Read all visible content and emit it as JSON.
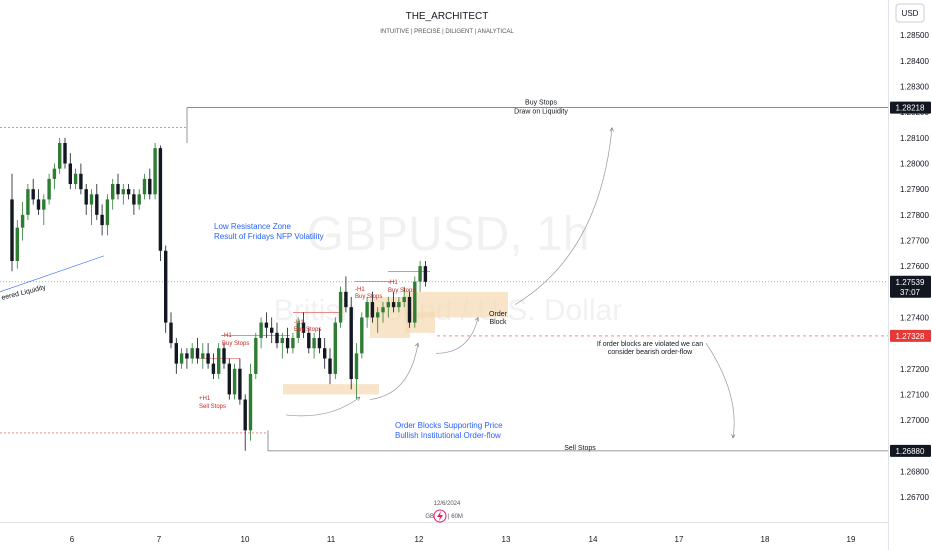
{
  "header": {
    "brand": "THE_ARCHITECT",
    "tagline": "INTUITIVE | PRECISE | DILIGENT | ANALYTICAL",
    "currency": "USD"
  },
  "watermark": {
    "symbol": "GBPUSD, 1h",
    "description": "British Pound / U.S. Dollar"
  },
  "footer": {
    "date": "12/6/2024",
    "label_left": "GB",
    "label_right": "| 60M"
  },
  "colors": {
    "up": "#2e7d32",
    "down": "#131722",
    "zone": "#f5d9b0",
    "red_line": "#e04848",
    "blue_text": "#2962ff",
    "red_text": "#c62828",
    "price_badge": "#131722",
    "current_badge": "#e53935"
  },
  "chart_data": {
    "type": "candlestick",
    "y_range": [
      1.2663,
      1.2861
    ],
    "y_ticks": [
      {
        "value": 1.285,
        "label": "1.28500"
      },
      {
        "value": 1.284,
        "label": "1.28400"
      },
      {
        "value": 1.283,
        "label": "1.28300"
      },
      {
        "value": 1.282,
        "label": "1.28200"
      },
      {
        "value": 1.281,
        "label": "1.28100"
      },
      {
        "value": 1.28,
        "label": "1.28000"
      },
      {
        "value": 1.279,
        "label": "1.27900"
      },
      {
        "value": 1.278,
        "label": "1.27800"
      },
      {
        "value": 1.277,
        "label": "1.27700"
      },
      {
        "value": 1.276,
        "label": "1.27600"
      },
      {
        "value": 1.274,
        "label": "1.27400"
      },
      {
        "value": 1.272,
        "label": "1.27200"
      },
      {
        "value": 1.271,
        "label": "1.27100"
      },
      {
        "value": 1.27,
        "label": "1.27000"
      },
      {
        "value": 1.268,
        "label": "1.26800"
      },
      {
        "value": 1.267,
        "label": "1.26700"
      }
    ],
    "x_ticks": [
      "6",
      "7",
      "10",
      "11",
      "12",
      "13",
      "14",
      "17",
      "18",
      "19"
    ],
    "price_badges": [
      {
        "value": 1.28218,
        "label": "1.28218",
        "kind": "level"
      },
      {
        "value": 1.27539,
        "label": "1.27539",
        "kind": "last",
        "countdown": "37:07"
      },
      {
        "value": 1.27328,
        "label": "1.27328",
        "kind": "current"
      },
      {
        "value": 1.2688,
        "label": "1.26880",
        "kind": "level"
      }
    ],
    "levels": [
      {
        "value": 1.28218,
        "label": "Buy Stops"
      },
      {
        "value": 1.2688,
        "label": "Sell Stops"
      }
    ],
    "annotations": {
      "buy_stops_target": [
        "Buy Stops",
        "Draw on Liquidity"
      ],
      "sell_stops": "Sell Stops",
      "low_resistance": [
        "Low Resistance Zone",
        "Result of Fridays NFP Volatility"
      ],
      "engineered": "eered Liquidity",
      "order_block": [
        "Order",
        "Block"
      ],
      "violation": [
        "If order blocks are violated we can",
        "consider bearish order-flow"
      ],
      "supporting": [
        "Order Blocks Supporting Price",
        "Bullish Institutional Order-flow"
      ],
      "h1_buy_1": [
        "-H1",
        "Buy Stops"
      ],
      "h1_sell": [
        "+H1",
        "Sell Stops"
      ],
      "h1_buy_2": [
        "-H1",
        "Buy Stops"
      ],
      "h1_buy_3": [
        "-H1",
        "Buy Stops"
      ],
      "h1_buy_4": [
        "-H1",
        "Buy Stops"
      ]
    },
    "candles": [
      [
        1.2786,
        1.2796,
        1.2758,
        1.2762
      ],
      [
        1.2762,
        1.2778,
        1.2759,
        1.2775
      ],
      [
        1.2775,
        1.2785,
        1.277,
        1.278
      ],
      [
        1.278,
        1.2792,
        1.2778,
        1.279
      ],
      [
        1.279,
        1.2794,
        1.2784,
        1.2786
      ],
      [
        1.2786,
        1.279,
        1.278,
        1.2782
      ],
      [
        1.2782,
        1.2788,
        1.2776,
        1.2786
      ],
      [
        1.2786,
        1.2796,
        1.2784,
        1.2794
      ],
      [
        1.2794,
        1.28,
        1.279,
        1.2798
      ],
      [
        1.2798,
        1.281,
        1.2796,
        1.2808
      ],
      [
        1.2808,
        1.281,
        1.2798,
        1.28
      ],
      [
        1.28,
        1.2804,
        1.279,
        1.2792
      ],
      [
        1.2792,
        1.2798,
        1.279,
        1.2796
      ],
      [
        1.2796,
        1.28,
        1.2788,
        1.279
      ],
      [
        1.279,
        1.2792,
        1.278,
        1.2784
      ],
      [
        1.2784,
        1.279,
        1.2776,
        1.2788
      ],
      [
        1.2788,
        1.2792,
        1.2778,
        1.278
      ],
      [
        1.278,
        1.2784,
        1.2772,
        1.2776
      ],
      [
        1.2776,
        1.2788,
        1.2772,
        1.2786
      ],
      [
        1.2786,
        1.2794,
        1.2782,
        1.2792
      ],
      [
        1.2792,
        1.2796,
        1.2786,
        1.2788
      ],
      [
        1.2788,
        1.2792,
        1.2784,
        1.279
      ],
      [
        1.279,
        1.2792,
        1.2786,
        1.2788
      ],
      [
        1.2788,
        1.279,
        1.278,
        1.2784
      ],
      [
        1.2784,
        1.279,
        1.2782,
        1.2788
      ],
      [
        1.2788,
        1.2796,
        1.2786,
        1.2794
      ],
      [
        1.2794,
        1.2798,
        1.2786,
        1.2788
      ],
      [
        1.2788,
        1.2808,
        1.2786,
        1.2806
      ],
      [
        1.2806,
        1.2807,
        1.2762,
        1.2766
      ],
      [
        1.2766,
        1.2768,
        1.2734,
        1.2738
      ],
      [
        1.2738,
        1.2742,
        1.2728,
        1.273
      ],
      [
        1.273,
        1.2732,
        1.2718,
        1.2722
      ],
      [
        1.2722,
        1.2728,
        1.272,
        1.2726
      ],
      [
        1.2726,
        1.2728,
        1.272,
        1.2724
      ],
      [
        1.2724,
        1.273,
        1.2722,
        1.2728
      ],
      [
        1.2728,
        1.2732,
        1.2722,
        1.2724
      ],
      [
        1.2724,
        1.273,
        1.272,
        1.2726
      ],
      [
        1.2726,
        1.273,
        1.272,
        1.2722
      ],
      [
        1.2722,
        1.2726,
        1.2716,
        1.2718
      ],
      [
        1.2718,
        1.273,
        1.2716,
        1.2728
      ],
      [
        1.2728,
        1.273,
        1.272,
        1.2722
      ],
      [
        1.2722,
        1.2724,
        1.2708,
        1.271
      ],
      [
        1.271,
        1.2722,
        1.2708,
        1.272
      ],
      [
        1.272,
        1.2724,
        1.2706,
        1.2708
      ],
      [
        1.2708,
        1.271,
        1.2688,
        1.2696
      ],
      [
        1.2696,
        1.2722,
        1.2692,
        1.2718
      ],
      [
        1.2718,
        1.2734,
        1.2716,
        1.2732
      ],
      [
        1.2732,
        1.274,
        1.2728,
        1.2738
      ],
      [
        1.2738,
        1.2742,
        1.2732,
        1.2736
      ],
      [
        1.2736,
        1.274,
        1.273,
        1.2734
      ],
      [
        1.2734,
        1.2738,
        1.2728,
        1.273
      ],
      [
        1.273,
        1.2734,
        1.2724,
        1.2732
      ],
      [
        1.2732,
        1.2736,
        1.2726,
        1.2728
      ],
      [
        1.2728,
        1.2734,
        1.2726,
        1.2732
      ],
      [
        1.2732,
        1.274,
        1.273,
        1.2738
      ],
      [
        1.2738,
        1.2742,
        1.2732,
        1.2734
      ],
      [
        1.2734,
        1.2736,
        1.2726,
        1.2728
      ],
      [
        1.2728,
        1.2734,
        1.2724,
        1.2732
      ],
      [
        1.2732,
        1.2736,
        1.2726,
        1.2728
      ],
      [
        1.2728,
        1.2732,
        1.272,
        1.2724
      ],
      [
        1.2724,
        1.2728,
        1.2714,
        1.2718
      ],
      [
        1.2718,
        1.274,
        1.2716,
        1.2738
      ],
      [
        1.2738,
        1.2752,
        1.2736,
        1.275
      ],
      [
        1.275,
        1.2756,
        1.2742,
        1.2744
      ],
      [
        1.2744,
        1.2748,
        1.2712,
        1.2716
      ],
      [
        1.2716,
        1.273,
        1.2708,
        1.2726
      ],
      [
        1.2726,
        1.2742,
        1.2724,
        1.274
      ],
      [
        1.274,
        1.2748,
        1.2736,
        1.2746
      ],
      [
        1.2746,
        1.275,
        1.2738,
        1.274
      ],
      [
        1.274,
        1.2744,
        1.2734,
        1.2742
      ],
      [
        1.2742,
        1.2746,
        1.2738,
        1.2744
      ],
      [
        1.2744,
        1.2748,
        1.274,
        1.2746
      ],
      [
        1.2746,
        1.275,
        1.2742,
        1.2744
      ],
      [
        1.2744,
        1.2748,
        1.2742,
        1.2746
      ],
      [
        1.2746,
        1.2752,
        1.2744,
        1.2748
      ],
      [
        1.2748,
        1.275,
        1.2736,
        1.2738
      ],
      [
        1.2738,
        1.2756,
        1.2736,
        1.2754
      ],
      [
        1.2754,
        1.2762,
        1.275,
        1.276
      ],
      [
        1.276,
        1.2762,
        1.2752,
        1.27539
      ]
    ]
  }
}
